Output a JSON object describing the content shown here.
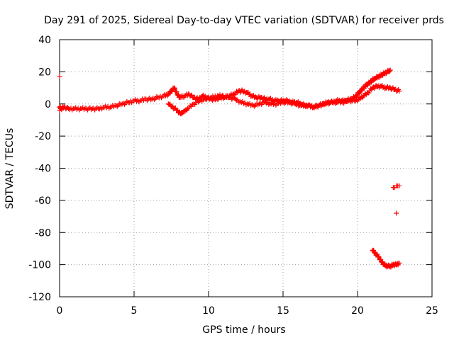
{
  "chart_data": {
    "type": "scatter",
    "title": "Day 291 of 2025, Sidereal Day-to-day VTEC variation (SDTVAR) for receiver prds",
    "xlabel": "GPS time / hours",
    "ylabel": "SDTVAR / TECUs",
    "xlim": [
      0,
      25
    ],
    "ylim": [
      -120,
      40
    ],
    "xticks": [
      0,
      5,
      10,
      15,
      20,
      25
    ],
    "yticks": [
      40,
      20,
      0,
      -20,
      -40,
      -60,
      -80,
      -100,
      -120
    ],
    "grid": true,
    "marker": "+",
    "color": "#ff0000",
    "series": [
      {
        "name": "main_trace",
        "x": [
          0.0,
          0.1,
          0.3,
          0.6,
          1.0,
          1.4,
          1.8,
          2.2,
          2.6,
          3.0,
          3.4,
          3.8,
          4.2,
          4.6,
          5.0,
          5.4,
          5.8,
          6.2,
          6.6,
          7.0,
          7.3,
          7.5,
          7.7,
          7.9,
          8.1,
          8.4,
          8.7,
          9.0,
          9.3,
          9.6,
          9.9,
          10.2,
          10.5,
          10.8,
          11.1,
          11.4,
          11.7,
          12.0,
          12.3,
          12.6,
          12.9,
          13.2,
          13.5,
          13.8,
          14.1,
          14.4,
          14.7,
          15.0,
          15.3,
          15.6,
          15.9,
          16.2,
          16.5,
          16.8,
          17.1,
          17.4,
          17.7,
          18.0,
          18.3,
          18.6,
          18.9,
          19.2,
          19.5,
          19.8,
          20.0,
          20.2,
          20.4,
          20.6,
          20.8,
          21.0,
          21.2,
          21.4,
          21.6,
          21.8,
          22.0,
          22.2
        ],
        "y": [
          -2,
          -3,
          -2,
          -3,
          -3,
          -3,
          -3,
          -3,
          -3,
          -2,
          -2,
          -1,
          0,
          1,
          2,
          2,
          3,
          3,
          4,
          5,
          6,
          8,
          10,
          6,
          4,
          5,
          6,
          4,
          3,
          5,
          4,
          3,
          3,
          4,
          4,
          5,
          6,
          8,
          8,
          7,
          5,
          4,
          4,
          3,
          3,
          2,
          2,
          2,
          2,
          1,
          1,
          0,
          -1,
          -1,
          -2,
          -1,
          0,
          1,
          1,
          2,
          2,
          2,
          3,
          4,
          6,
          8,
          10,
          12,
          13,
          15,
          16,
          17,
          18,
          19,
          20,
          21
        ]
      },
      {
        "name": "secondary_trace",
        "x": [
          7.3,
          7.6,
          7.9,
          8.1,
          8.3,
          8.6,
          9.0,
          9.4,
          9.8,
          10.2,
          10.6,
          11.0,
          11.4,
          11.8,
          12.2,
          12.6,
          13.0,
          13.4,
          13.8,
          14.2,
          14.6,
          15.0,
          15.4,
          15.8,
          16.2,
          16.6,
          17.0,
          17.4,
          17.8,
          18.2,
          18.6,
          19.0,
          19.4,
          19.8,
          20.1,
          20.4,
          20.7,
          21.0,
          21.3,
          21.6,
          21.9,
          22.2,
          22.5,
          22.8
        ],
        "y": [
          0,
          -2,
          -4,
          -6,
          -5,
          -3,
          0,
          2,
          3,
          4,
          5,
          5,
          4,
          3,
          1,
          0,
          -1,
          0,
          1,
          0,
          0,
          1,
          1,
          0,
          -1,
          -1,
          -2,
          -1,
          0,
          1,
          1,
          1,
          2,
          2,
          3,
          5,
          7,
          10,
          11,
          11,
          10,
          10,
          9,
          8
        ]
      },
      {
        "name": "lower_arc",
        "x": [
          21.0,
          21.2,
          21.4,
          21.6,
          21.8,
          22.0,
          22.2,
          22.4,
          22.6,
          22.8
        ],
        "y": [
          -91,
          -93,
          -95,
          -98,
          -100,
          -101,
          -101,
          -100,
          -100,
          -99
        ]
      },
      {
        "name": "isolated_points",
        "x": [
          0.0,
          0.0,
          22.4,
          22.5,
          22.6,
          22.7,
          22.8,
          22.6
        ],
        "y": [
          17,
          -4,
          -52,
          -52,
          -51,
          -51,
          -51,
          -68
        ]
      }
    ]
  }
}
